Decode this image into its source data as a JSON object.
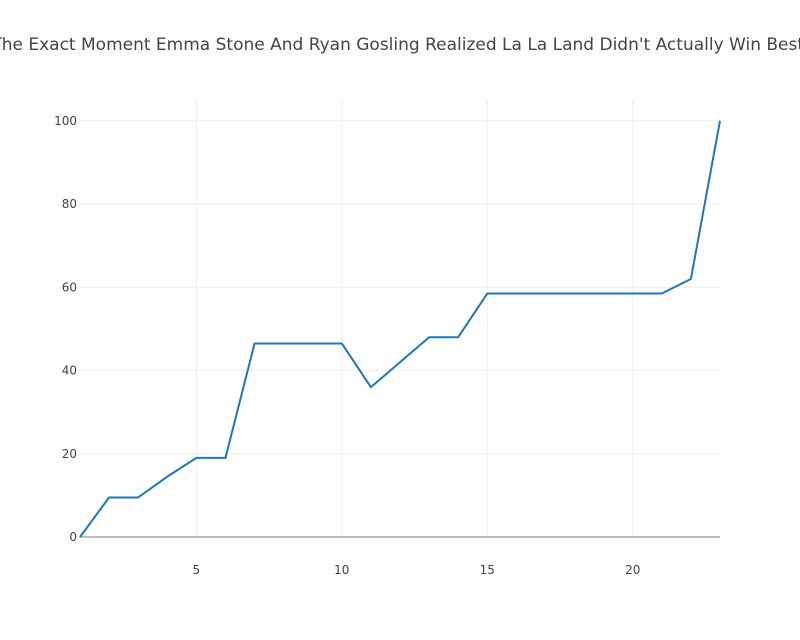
{
  "chart_data": {
    "type": "line",
    "title": "Here's The Exact Moment Emma Stone And Ryan Gosling Realized  La La Land  Didn't Actually Win Best Picture",
    "xlabel": "",
    "ylabel": "",
    "xlim": [
      1,
      23
    ],
    "ylim": [
      0,
      105
    ],
    "x_ticks": [
      5,
      10,
      15,
      20
    ],
    "y_ticks": [
      0,
      20,
      40,
      60,
      80,
      100
    ],
    "grid": true,
    "legend": "none",
    "series": [
      {
        "color": "#1f77b4",
        "x": [
          1,
          2,
          3,
          4,
          5,
          6,
          7,
          8,
          9,
          10,
          11,
          12,
          13,
          14,
          15,
          16,
          17,
          18,
          19,
          20,
          21,
          22,
          23
        ],
        "y": [
          0,
          9.5,
          9.5,
          14.5,
          19,
          19,
          46.5,
          46.5,
          46.5,
          46.5,
          36,
          42,
          48,
          48,
          58.5,
          58.5,
          58.5,
          58.5,
          58.5,
          58.5,
          58.5,
          62,
          100
        ]
      }
    ]
  }
}
